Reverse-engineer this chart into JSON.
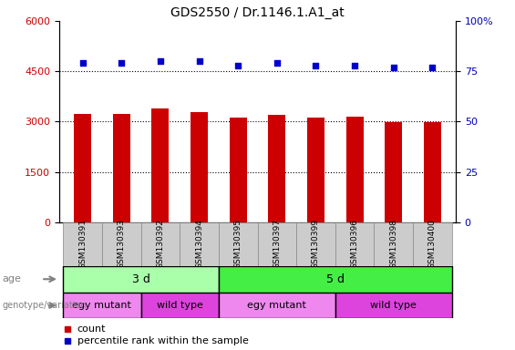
{
  "title": "GDS2550 / Dr.1146.1.A1_at",
  "samples": [
    "GSM130391",
    "GSM130393",
    "GSM130392",
    "GSM130394",
    "GSM130395",
    "GSM130397",
    "GSM130399",
    "GSM130396",
    "GSM130398",
    "GSM130400"
  ],
  "counts": [
    3230,
    3230,
    3380,
    3280,
    3130,
    3190,
    3110,
    3150,
    2990,
    2980
  ],
  "percentile_ranks": [
    79,
    79,
    80,
    80,
    78,
    79,
    78,
    78,
    77,
    77
  ],
  "ylim_left": [
    0,
    6000
  ],
  "ylim_right": [
    0,
    100
  ],
  "yticks_left": [
    0,
    1500,
    3000,
    4500,
    6000
  ],
  "yticks_right": [
    0,
    25,
    50,
    75,
    100
  ],
  "bar_color": "#cc0000",
  "dot_color": "#0000cc",
  "age_groups": [
    {
      "label": "3 d",
      "start": 0,
      "end": 4,
      "color": "#aaffaa"
    },
    {
      "label": "5 d",
      "start": 4,
      "end": 10,
      "color": "#44ee44"
    }
  ],
  "genotype_groups": [
    {
      "label": "egy mutant",
      "start": 0,
      "end": 2,
      "color": "#ee88ee"
    },
    {
      "label": "wild type",
      "start": 2,
      "end": 4,
      "color": "#dd44dd"
    },
    {
      "label": "egy mutant",
      "start": 4,
      "end": 7,
      "color": "#ee88ee"
    },
    {
      "label": "wild type",
      "start": 7,
      "end": 10,
      "color": "#dd44dd"
    }
  ],
  "background_color": "#ffffff",
  "tick_label_color_left": "#cc0000",
  "tick_label_color_right": "#0000bb",
  "bar_width": 0.45,
  "xtick_bg_color": "#cccccc",
  "xtick_border_color": "#888888"
}
